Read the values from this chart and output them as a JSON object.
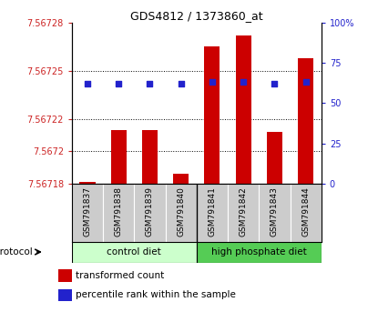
{
  "title": "GDS4812 / 1373860_at",
  "samples": [
    "GSM791837",
    "GSM791838",
    "GSM791839",
    "GSM791840",
    "GSM791841",
    "GSM791842",
    "GSM791843",
    "GSM791844"
  ],
  "transformed_counts": [
    7.567181,
    7.567213,
    7.567213,
    7.567186,
    7.567265,
    7.567272,
    7.567212,
    7.567258
  ],
  "percentile_ranks": [
    62,
    62,
    62,
    62,
    63,
    63,
    62,
    63
  ],
  "y_min": 7.56718,
  "y_max": 7.56728,
  "y_ticks": [
    7.56718,
    7.5672,
    7.56722,
    7.56725,
    7.56728
  ],
  "y_tick_labels": [
    "7.56718",
    "7.5672",
    "7.56722",
    "7.56725",
    "7.56728"
  ],
  "right_y_ticks": [
    0,
    25,
    50,
    75,
    100
  ],
  "right_y_labels": [
    "0",
    "25",
    "50",
    "75",
    "100%"
  ],
  "bar_color": "#cc0000",
  "dot_color": "#2222cc",
  "control_color": "#ccffcc",
  "high_phosphate_color": "#55cc55",
  "protocol_label": "protocol",
  "control_label": "control diet",
  "high_phosphate_label": "high phosphate diet",
  "legend_bar_label": "transformed count",
  "legend_dot_label": "percentile rank within the sample",
  "bg_color": "#ffffff",
  "tick_color_left": "#cc2222",
  "tick_color_right": "#2222cc",
  "sample_label_bg": "#cccccc"
}
